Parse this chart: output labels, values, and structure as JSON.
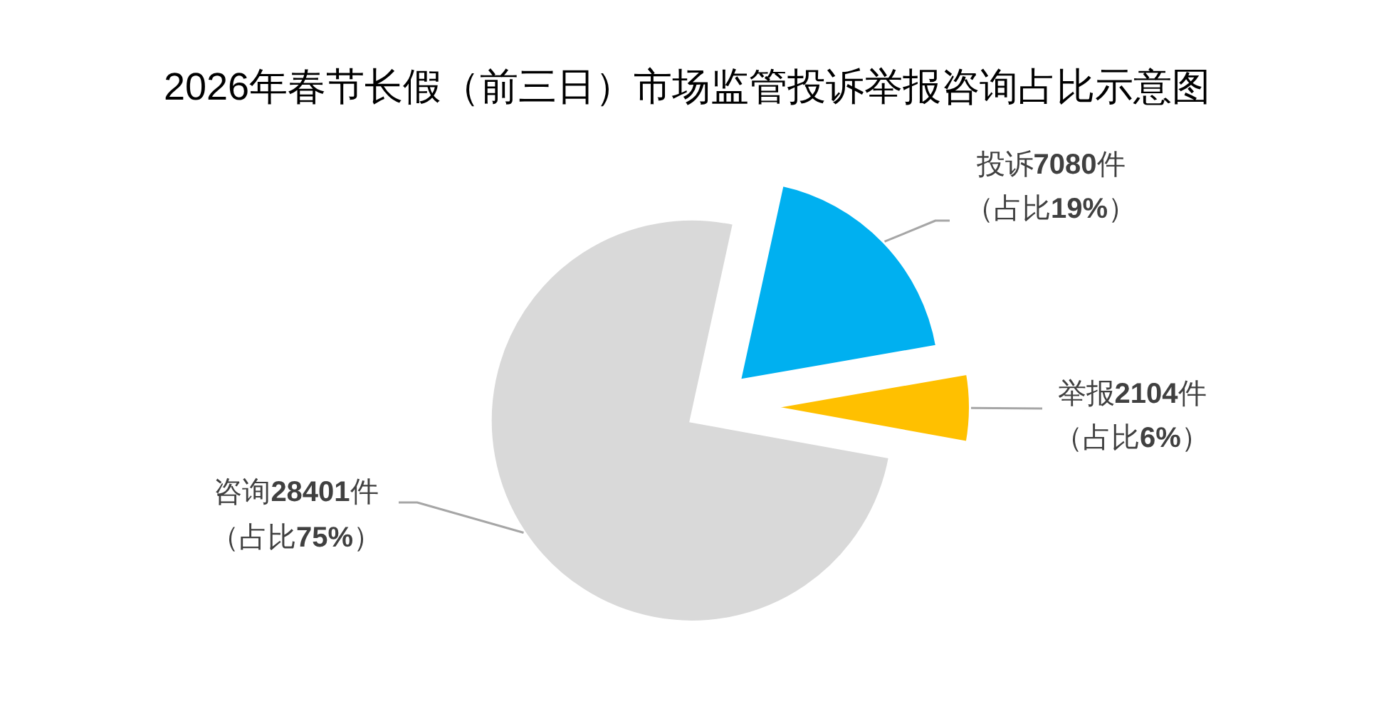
{
  "chart_data": {
    "type": "pie",
    "title": "2026年春节长假（前三日）市场监管投诉举报咨询占比示意图",
    "categories": [
      "投诉",
      "举报",
      "咨询"
    ],
    "values": [
      7080,
      2104,
      28401
    ],
    "colors": [
      "#00b0f0",
      "#ffc000",
      "#d9d9d9"
    ],
    "value_labels": [
      "7080件",
      "2104件",
      "28401件"
    ],
    "annotations": [
      "（占比19%）",
      "（占比6%）",
      "（占比75%）"
    ]
  }
}
